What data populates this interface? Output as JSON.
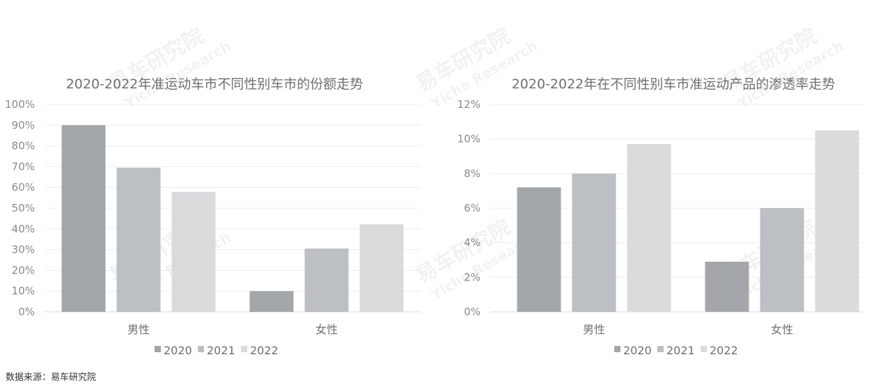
{
  "colors": {
    "2020": "#a3a6ab",
    "2021": "#bcbfc3",
    "2022": "#d9dbdd"
  },
  "watermark": {
    "cn": "易车研究院",
    "en": "Yiche Research"
  },
  "source": "数据来源：易车研究院",
  "chart_data": [
    {
      "type": "bar",
      "title": "2020-2022年准运动车市不同性别车市的份额走势",
      "categories": [
        "男性",
        "女性"
      ],
      "series": [
        {
          "name": "2020",
          "values": [
            90,
            10
          ]
        },
        {
          "name": "2021",
          "values": [
            69.5,
            30.5
          ]
        },
        {
          "name": "2022",
          "values": [
            57.8,
            42.2
          ]
        }
      ],
      "ylim": [
        0,
        100
      ],
      "yticks": [
        "0%",
        "10%",
        "20%",
        "30%",
        "40%",
        "50%",
        "60%",
        "70%",
        "80%",
        "90%",
        "100%"
      ],
      "grid": true,
      "legend": "bottom"
    },
    {
      "type": "bar",
      "title": "2020-2022年在不同性别车市准运动产品的渗透率走势",
      "categories": [
        "男性",
        "女性"
      ],
      "series": [
        {
          "name": "2020",
          "values": [
            7.2,
            2.9
          ]
        },
        {
          "name": "2021",
          "values": [
            8.0,
            6.0
          ]
        },
        {
          "name": "2022",
          "values": [
            9.7,
            10.5
          ]
        }
      ],
      "ylim": [
        0,
        12
      ],
      "yticks": [
        "0%",
        "2%",
        "4%",
        "6%",
        "8%",
        "10%",
        "12%"
      ],
      "grid": true,
      "legend": "bottom"
    }
  ]
}
